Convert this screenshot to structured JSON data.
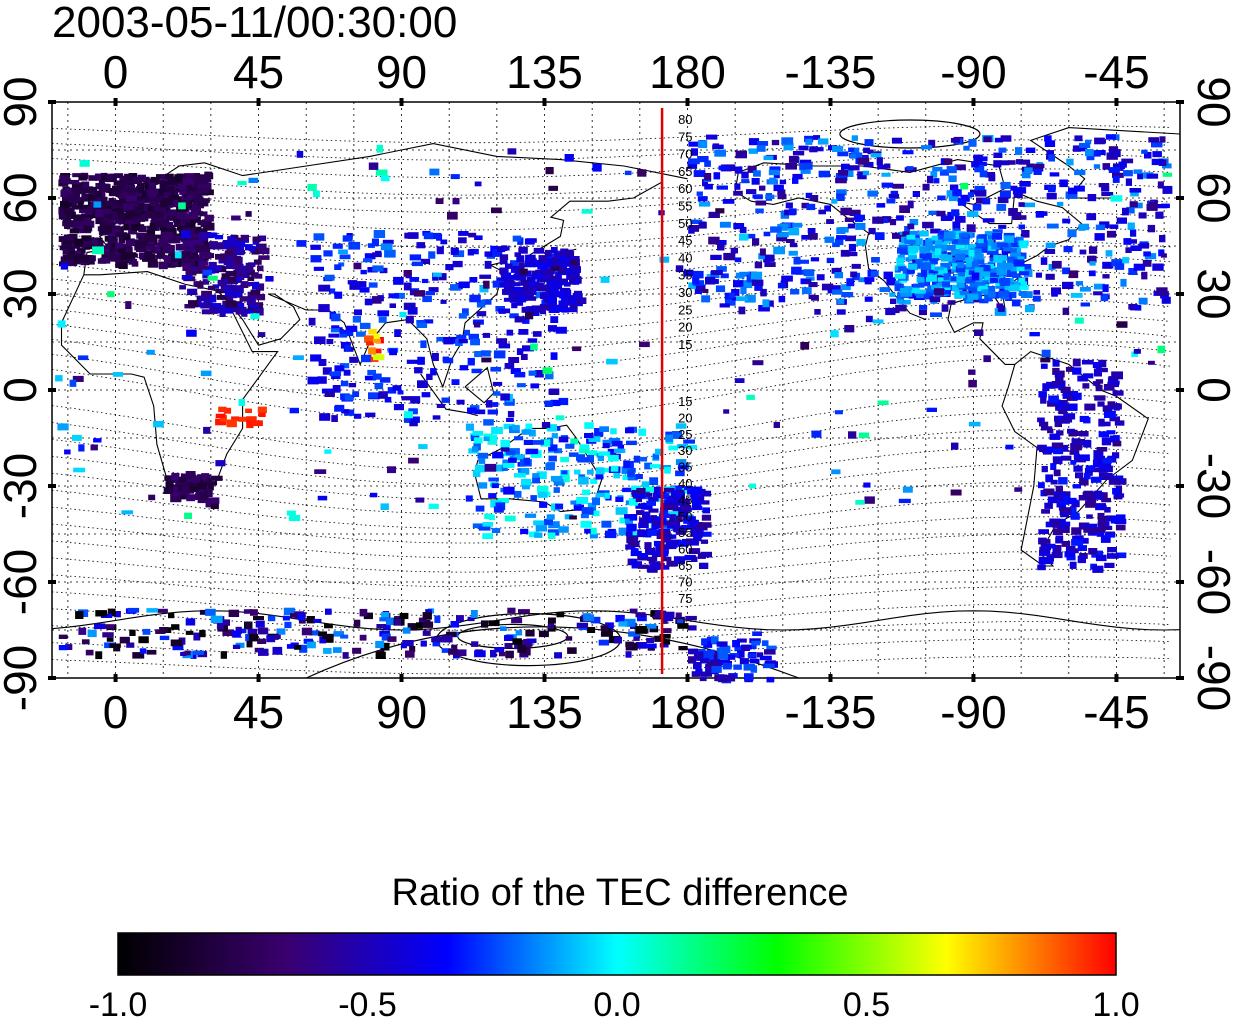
{
  "title": "2003-05-11/00:30:00",
  "axes": {
    "top_lon_ticks": [
      "0",
      "45",
      "90",
      "135",
      "180",
      "-135",
      "-90",
      "-45"
    ],
    "bottom_lon_ticks": [
      "0",
      "45",
      "90",
      "135",
      "180",
      "-135",
      "-90",
      "-45"
    ],
    "lon_tick_values": [
      0,
      45,
      90,
      135,
      180,
      225,
      270,
      315
    ],
    "lon_range": [
      -20,
      335
    ],
    "left_lat_ticks": [
      "90",
      "60",
      "30",
      "0",
      "-30",
      "-60",
      "-90"
    ],
    "right_lat_ticks": [
      "90",
      "60",
      "30",
      "0",
      "-30",
      "-60",
      "-90"
    ],
    "lat_tick_values": [
      90,
      60,
      30,
      0,
      -30,
      -60,
      -90
    ],
    "lat_range": [
      -90,
      90
    ],
    "gridlines": true
  },
  "meridian_line": {
    "longitude": 172,
    "color": "#e00000"
  },
  "contour_labels_north": [
    "80",
    "75",
    "70",
    "65",
    "60",
    "55",
    "50",
    "45",
    "40",
    "35",
    "30",
    "25",
    "20",
    "15"
  ],
  "contour_labels_south": [
    "15",
    "20",
    "25",
    "30",
    "35",
    "40",
    "45",
    "50",
    "55",
    "60",
    "65",
    "70",
    "75"
  ],
  "colorbar": {
    "title": "Ratio of the TEC difference",
    "ticks": [
      "-1.0",
      "-0.5",
      "0.0",
      "0.5",
      "1.0"
    ],
    "range": [
      -1.0,
      1.0
    ],
    "colors": [
      "#000000",
      "#3a0070",
      "#0000ff",
      "#00ffff",
      "#00ff00",
      "#ffff00",
      "#ff0000"
    ]
  }
}
